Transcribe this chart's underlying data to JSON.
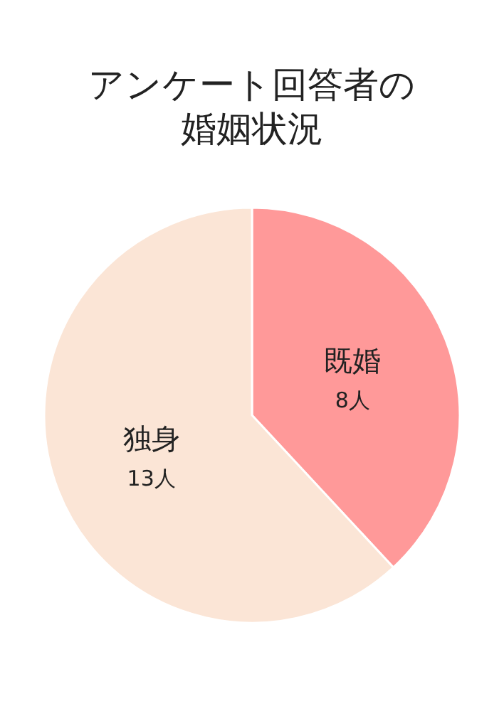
{
  "chart_data": {
    "type": "pie",
    "title": "アンケート回答者の婚姻状況",
    "categories": [
      "既婚",
      "独身"
    ],
    "values": [
      8,
      13
    ],
    "value_labels": [
      "8人",
      "13人"
    ],
    "colors": [
      "#ff9999",
      "#fbe5d6"
    ]
  }
}
